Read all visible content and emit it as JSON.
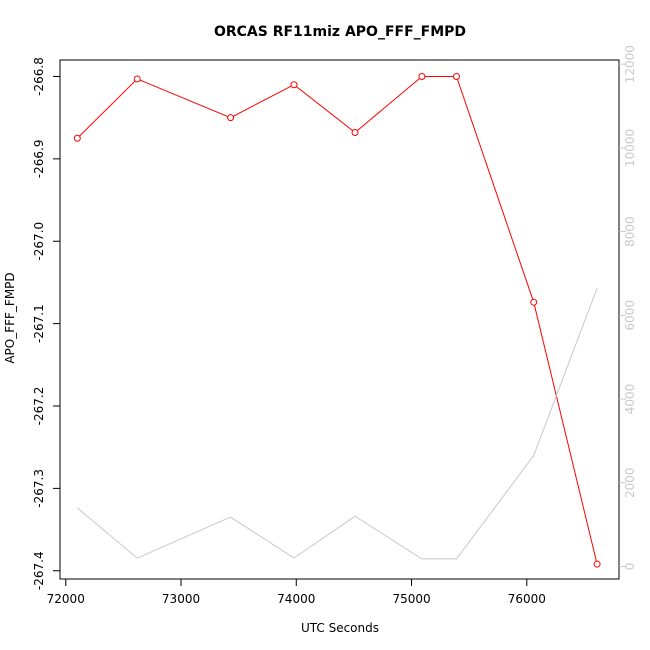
{
  "chart_data": {
    "type": "line",
    "title": "ORCAS RF11miz APO_FFF_FMPD",
    "xlabel": "UTC Seconds",
    "ylabel": "APO_FFF_FMPD",
    "xlim": [
      71950,
      76800
    ],
    "ylim_left": [
      -267.41,
      -266.78
    ],
    "ylim_right": [
      -300,
      12100
    ],
    "x_ticks": [
      72000,
      73000,
      74000,
      75000,
      76000
    ],
    "x_tick_labels": [
      "72000",
      "73000",
      "74000",
      "75000",
      "76000"
    ],
    "y_left_ticks": [
      -266.8,
      -266.9,
      -267.0,
      -267.1,
      -267.2,
      -267.3,
      -267.4
    ],
    "y_left_tick_labels": [
      "-266.8",
      "-266.9",
      "-267.0",
      "-267.1",
      "-267.2",
      "-267.3",
      "-267.4"
    ],
    "y_right_ticks": [
      0,
      2000,
      4000,
      6000,
      8000,
      10000,
      12000
    ],
    "y_right_tick_labels": [
      "0",
      "2000",
      "4000",
      "6000",
      "8000",
      "10000",
      "12000"
    ],
    "grid": false,
    "series": [
      {
        "axis": "left",
        "color": "#ff0000",
        "markers": "open-circle",
        "x": [
          72100,
          72620,
          73430,
          73980,
          74510,
          75090,
          75390,
          76060,
          76610
        ],
        "y": [
          -266.875,
          -266.803,
          -266.85,
          -266.81,
          -266.868,
          -266.8,
          -266.8,
          -267.074,
          -267.392
        ]
      },
      {
        "axis": "right",
        "color": "#c8c8c8",
        "markers": "none",
        "x": [
          72100,
          72620,
          73430,
          73980,
          74510,
          75090,
          75390,
          76060,
          76610
        ],
        "y": [
          1400,
          200,
          1180,
          200,
          1200,
          180,
          180,
          2650,
          6650
        ]
      }
    ]
  }
}
